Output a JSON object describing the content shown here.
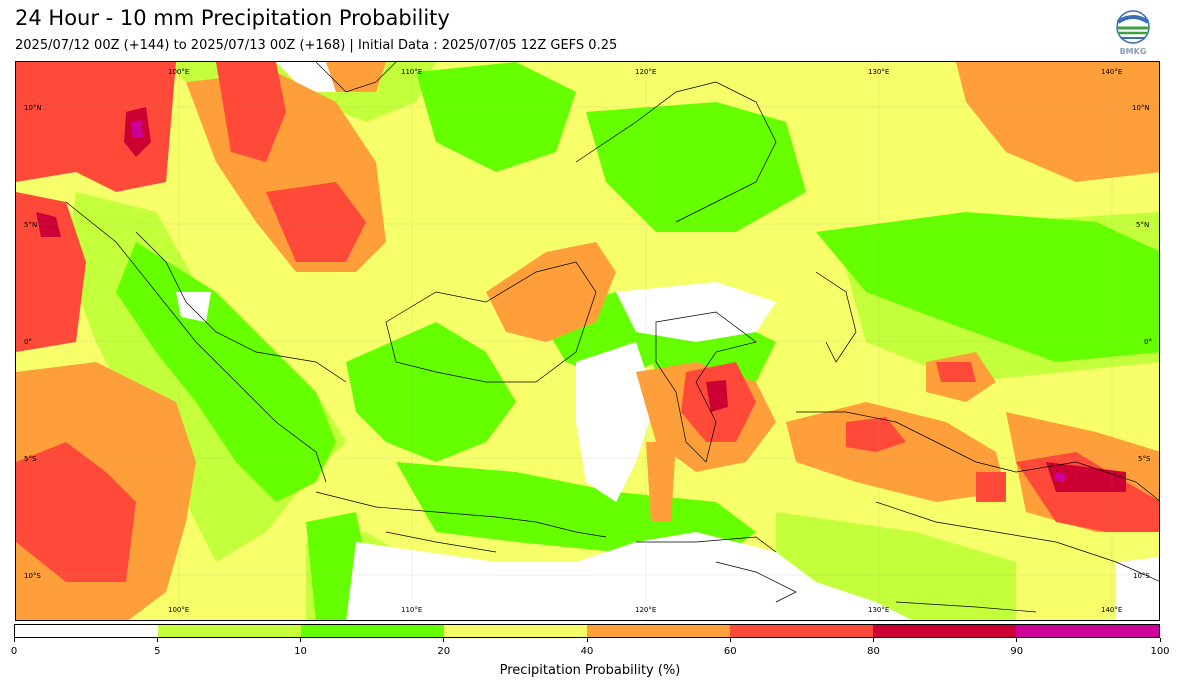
{
  "header": {
    "title": "24 Hour - 10 mm Precipitation Probability",
    "subtitle": "2025/07/12 00Z (+144) to 2025/07/13 00Z (+168) | Initial Data : 2025/07/05 12Z GEFS 0.25",
    "logo_text": "BMKG"
  },
  "map": {
    "lon_labels": [
      "100°E",
      "110°E",
      "120°E",
      "130°E",
      "140°E"
    ],
    "lat_labels": [
      "10°N",
      "5°N",
      "0°",
      "5°S",
      "10°S"
    ]
  },
  "colorbar": {
    "label": "Precipitation Probability (%)",
    "ticks": [
      "0",
      "5",
      "10",
      "20",
      "40",
      "60",
      "80",
      "90",
      "100"
    ],
    "colors": [
      "#ffffff",
      "#c3ff3a",
      "#66ff00",
      "#f6ff6a",
      "#ff9f3a",
      "#ff4a3a",
      "#cc0033",
      "#cc0099"
    ]
  }
}
